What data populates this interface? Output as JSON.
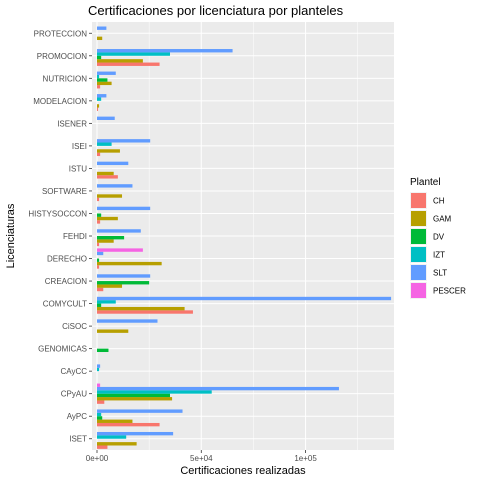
{
  "chart_data": {
    "type": "bar",
    "orientation": "horizontal",
    "grouping": "dodge",
    "title": "Certificaciones por licenciatura por planteles",
    "xlabel": "Certificaciones realizadas",
    "ylabel": "Licenciaturas",
    "xlim": [
      0,
      140000
    ],
    "x_tick_values": [
      0,
      50000,
      100000
    ],
    "x_tick_labels": [
      "0e+00",
      "5e+04",
      "1e+05"
    ],
    "grid": true,
    "background": "#ebebeb",
    "legend": {
      "title": "Plantel",
      "position": "right"
    },
    "categories": [
      "PROTECCION",
      "PROMOCION",
      "NUTRICION",
      "MODELACION",
      "ISENER",
      "ISEI",
      "ISTU",
      "SOFTWARE",
      "HISTYSOCCON",
      "FEHDI",
      "DERECHO",
      "CREACION",
      "COMYCULT",
      "CiSOC",
      "GENOMICAS",
      "CAyCC",
      "CPyAU",
      "AyPC",
      "ISET"
    ],
    "series": [
      {
        "name": "CH",
        "color": "#F8766D",
        "values": [
          0,
          30000,
          1500,
          500,
          0,
          1500,
          10000,
          1000,
          1500,
          1000,
          1000,
          3000,
          46000,
          0,
          0,
          0,
          3500,
          30000,
          5000
        ]
      },
      {
        "name": "GAM",
        "color": "#B79F00",
        "values": [
          2500,
          22000,
          7000,
          1000,
          0,
          11000,
          8000,
          12000,
          10000,
          8000,
          31000,
          12000,
          42000,
          15000,
          0,
          0,
          36000,
          17000,
          19000
        ]
      },
      {
        "name": "DV",
        "color": "#00BA38",
        "values": [
          0,
          2000,
          5000,
          0,
          0,
          0,
          0,
          0,
          2000,
          13000,
          1000,
          25000,
          2000,
          0,
          5500,
          0,
          35000,
          2500,
          0
        ]
      },
      {
        "name": "IZT",
        "color": "#00BFC4",
        "values": [
          0,
          35000,
          1000,
          2000,
          0,
          7000,
          0,
          0,
          0,
          0,
          0,
          0,
          9000,
          0,
          0,
          1000,
          55000,
          2000,
          14000
        ]
      },
      {
        "name": "SLT",
        "color": "#619CFF",
        "values": [
          4500,
          65000,
          9000,
          4500,
          8500,
          25500,
          15000,
          17000,
          25500,
          21000,
          3000,
          25500,
          141000,
          29000,
          0,
          1500,
          116000,
          41000,
          36500
        ]
      },
      {
        "name": "PESCER",
        "color": "#F564E3",
        "values": [
          0,
          0,
          0,
          0,
          0,
          0,
          0,
          0,
          0,
          0,
          22000,
          0,
          0,
          0,
          0,
          0,
          1500,
          0,
          0
        ]
      }
    ]
  }
}
